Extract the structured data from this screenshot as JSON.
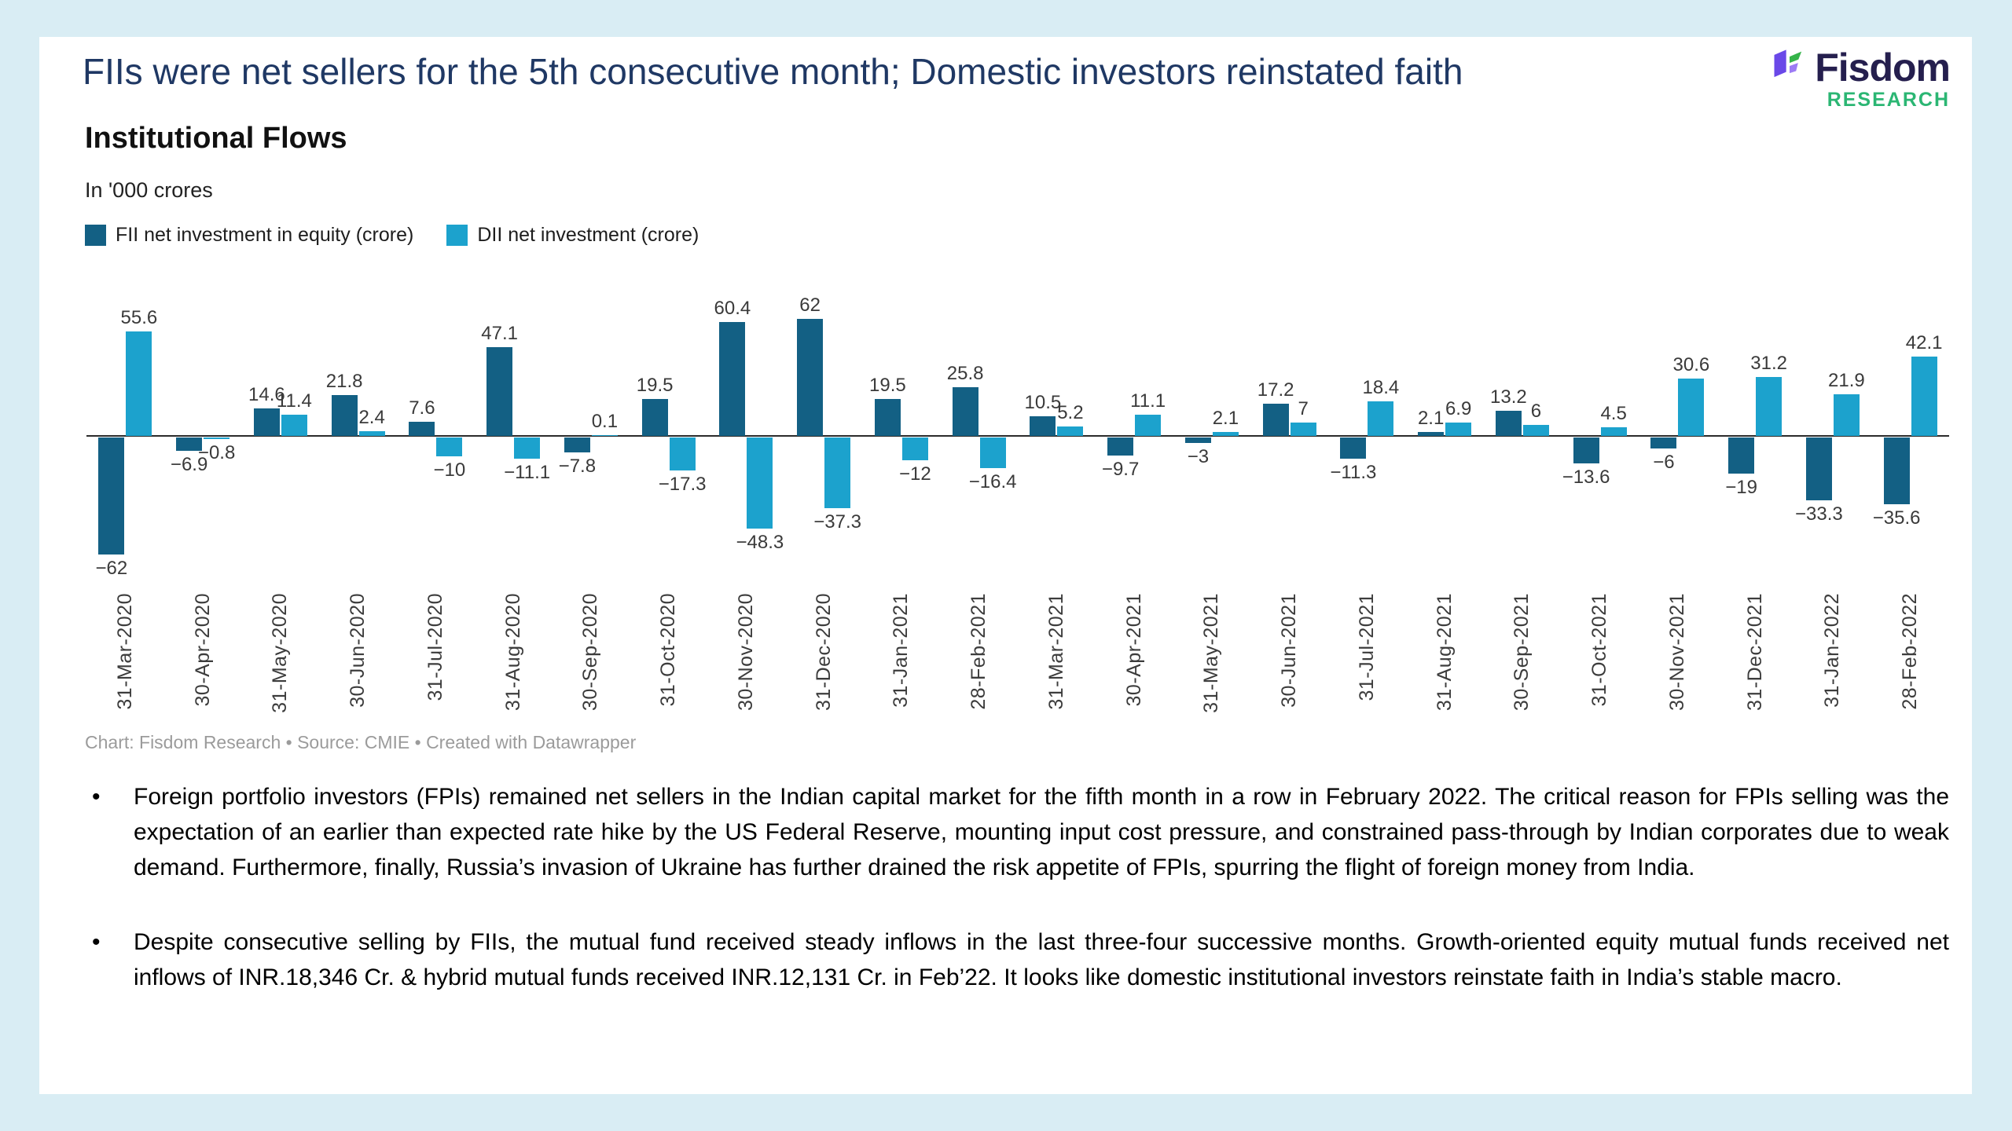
{
  "page": {
    "title": "FIIs were net sellers for the 5th consecutive month; Domestic investors reinstated faith",
    "bullet_glyph": "•"
  },
  "logo": {
    "brand": "Fisdom",
    "subtext": "RESEARCH"
  },
  "chart_data": {
    "type": "bar",
    "title": "Institutional Flows",
    "subtitle": "In '000 crores",
    "attribution": "Chart: Fisdom Research • Source: CMIE • Created with Datawrapper",
    "categories": [
      "31-Mar-2020",
      "30-Apr-2020",
      "31-May-2020",
      "30-Jun-2020",
      "31-Jul-2020",
      "31-Aug-2020",
      "30-Sep-2020",
      "31-Oct-2020",
      "30-Nov-2020",
      "31-Dec-2020",
      "31-Jan-2021",
      "28-Feb-2021",
      "31-Mar-2021",
      "30-Apr-2021",
      "31-May-2021",
      "30-Jun-2021",
      "31-Jul-2021",
      "31-Aug-2021",
      "30-Sep-2021",
      "31-Oct-2021",
      "30-Nov-2021",
      "31-Dec-2021",
      "31-Jan-2022",
      "28-Feb-2022"
    ],
    "series": [
      {
        "name": "FII net investment in equity (crore)",
        "color": "#136084",
        "values": [
          -62,
          -6.9,
          14.6,
          21.8,
          7.6,
          47.1,
          -7.8,
          19.5,
          60.4,
          62,
          19.5,
          25.8,
          10.5,
          -9.7,
          -3,
          17.2,
          -11.3,
          2.1,
          13.2,
          -13.6,
          -6,
          -19,
          -33.3,
          -35.6
        ]
      },
      {
        "name": "DII net investment (crore)",
        "color": "#1ca2cd",
        "values": [
          55.6,
          -0.8,
          11.4,
          2.4,
          -10,
          -11.1,
          0.1,
          -17.3,
          -48.3,
          -37.3,
          -12,
          -16.4,
          5.2,
          11.1,
          2.1,
          7,
          18.4,
          6.9,
          6,
          4.5,
          30.6,
          31.2,
          21.9,
          42.1
        ]
      }
    ],
    "ylim": [
      -62,
      62
    ],
    "grid": false,
    "legend_position": "top-left"
  },
  "bullets": [
    "Foreign portfolio investors (FPIs) remained net sellers in the Indian capital market for the fifth month in a row in February 2022. The critical reason for FPIs selling was the expectation of an earlier than expected rate hike by the US Federal Reserve, mounting input cost pressure, and constrained pass-through by Indian corporates due to weak demand. Furthermore, finally, Russia’s invasion of Ukraine has further drained the risk appetite of FPIs, spurring the flight of foreign money from India.",
    "Despite consecutive selling by FIIs, the mutual fund received steady inflows in the last three-four successive months. Growth-oriented equity mutual funds received net inflows of INR.18,346 Cr. & hybrid mutual funds received INR.12,131 Cr. in Feb’22. It looks like domestic institutional investors reinstate faith in India’s stable macro."
  ],
  "colors": {
    "page_bg": "#d9edf4",
    "card_bg": "#ffffff",
    "headline": "#1f3864",
    "fii_bar": "#136084",
    "dii_bar": "#1ca2cd",
    "logo_navy": "#251f4e",
    "research_green": "#2bb673",
    "bar_label": "#3a3a3a",
    "axis_label": "#3c3c3c",
    "attribution": "#9b9b9b"
  }
}
